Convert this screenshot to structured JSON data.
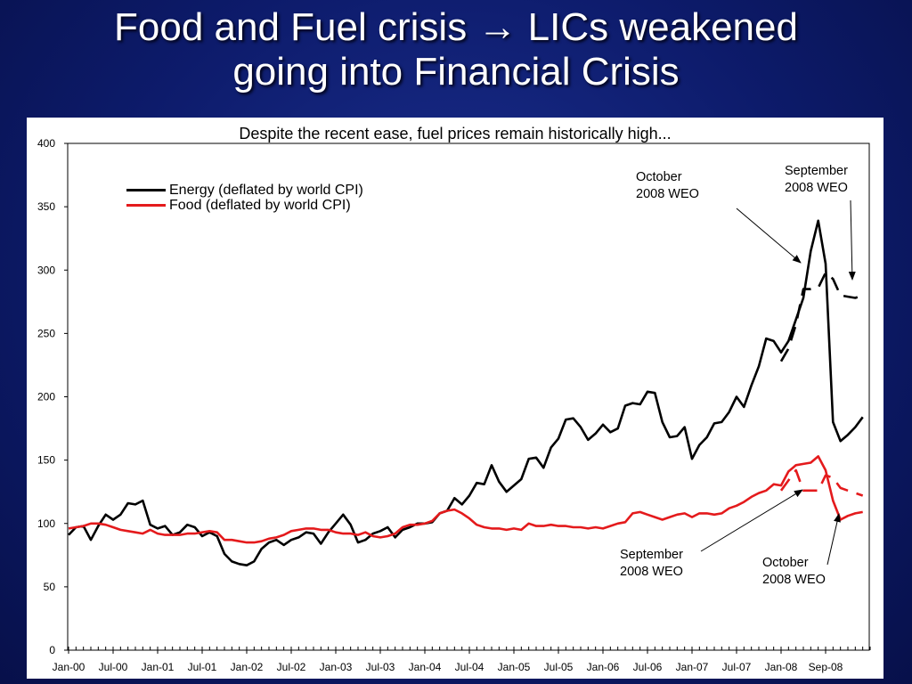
{
  "slide": {
    "title_line1_a": "Food and Fuel crisis",
    "title_arrow": "→",
    "title_line1_b": "LICs weakened",
    "title_line2": "going into Financial Crisis"
  },
  "colors": {
    "energy": "#000000",
    "food": "#e41a1c",
    "background": "#0d1b6b"
  },
  "annotations": {
    "energy_oct_weo": [
      "October",
      "2008 WEO"
    ],
    "energy_sep_weo": [
      "September",
      "2008 WEO"
    ],
    "food_sep_weo": [
      "September",
      "2008 WEO"
    ],
    "food_oct_weo": [
      "October",
      "2008 WEO"
    ]
  },
  "chart_data": {
    "type": "line",
    "title": "Despite the recent ease, fuel prices remain historically high...",
    "xlabel": "",
    "ylabel": "",
    "ylim": [
      0,
      400
    ],
    "yticks": [
      0,
      50,
      100,
      150,
      200,
      250,
      300,
      350,
      400
    ],
    "xticks": [
      "Jan-00",
      "Jul-00",
      "Jan-01",
      "Jul-01",
      "Jan-02",
      "Jul-02",
      "Jan-03",
      "Jul-03",
      "Jan-04",
      "Jul-04",
      "Jan-05",
      "Jul-05",
      "Jan-06",
      "Jul-06",
      "Jan-07",
      "Jul-07",
      "Jan-08",
      "Sep-08"
    ],
    "x_note": "x values are month indices, 0 = Jan-00",
    "legend_placement": "top-left",
    "grid": false,
    "series": [
      {
        "name": "Energy (deflated by world CPI)",
        "color": "#000000",
        "dash": "solid",
        "points": [
          [
            0,
            91
          ],
          [
            1,
            97
          ],
          [
            2,
            98
          ],
          [
            3,
            87
          ],
          [
            4,
            98
          ],
          [
            5,
            107
          ],
          [
            6,
            103
          ],
          [
            7,
            107
          ],
          [
            8,
            116
          ],
          [
            9,
            115
          ],
          [
            10,
            118
          ],
          [
            11,
            99
          ],
          [
            12,
            96
          ],
          [
            13,
            98
          ],
          [
            14,
            91
          ],
          [
            15,
            93
          ],
          [
            16,
            99
          ],
          [
            17,
            97
          ],
          [
            18,
            90
          ],
          [
            19,
            93
          ],
          [
            20,
            90
          ],
          [
            21,
            76
          ],
          [
            22,
            70
          ],
          [
            23,
            68
          ],
          [
            24,
            67
          ],
          [
            25,
            70
          ],
          [
            26,
            80
          ],
          [
            27,
            85
          ],
          [
            28,
            87
          ],
          [
            29,
            83
          ],
          [
            30,
            87
          ],
          [
            31,
            89
          ],
          [
            32,
            93
          ],
          [
            33,
            92
          ],
          [
            34,
            84
          ],
          [
            35,
            93
          ],
          [
            36,
            100
          ],
          [
            37,
            107
          ],
          [
            38,
            99
          ],
          [
            39,
            85
          ],
          [
            40,
            87
          ],
          [
            41,
            92
          ],
          [
            42,
            94
          ],
          [
            43,
            97
          ],
          [
            44,
            89
          ],
          [
            45,
            95
          ],
          [
            46,
            97
          ],
          [
            47,
            100
          ],
          [
            48,
            100
          ],
          [
            49,
            101
          ],
          [
            50,
            108
          ],
          [
            51,
            110
          ],
          [
            52,
            120
          ],
          [
            53,
            115
          ],
          [
            54,
            122
          ],
          [
            55,
            132
          ],
          [
            56,
            131
          ],
          [
            57,
            146
          ],
          [
            58,
            133
          ],
          [
            59,
            125
          ],
          [
            60,
            130
          ],
          [
            61,
            135
          ],
          [
            62,
            151
          ],
          [
            63,
            152
          ],
          [
            64,
            144
          ],
          [
            65,
            160
          ],
          [
            66,
            167
          ],
          [
            67,
            182
          ],
          [
            68,
            183
          ],
          [
            69,
            176
          ],
          [
            70,
            166
          ],
          [
            71,
            171
          ],
          [
            72,
            178
          ],
          [
            73,
            172
          ],
          [
            74,
            175
          ],
          [
            75,
            193
          ],
          [
            76,
            195
          ],
          [
            77,
            194
          ],
          [
            78,
            204
          ],
          [
            79,
            203
          ],
          [
            80,
            180
          ],
          [
            81,
            168
          ],
          [
            82,
            169
          ],
          [
            83,
            176
          ],
          [
            84,
            151
          ],
          [
            85,
            162
          ],
          [
            86,
            168
          ],
          [
            87,
            179
          ],
          [
            88,
            180
          ],
          [
            89,
            188
          ],
          [
            90,
            200
          ],
          [
            91,
            192
          ],
          [
            92,
            209
          ],
          [
            93,
            224
          ],
          [
            94,
            246
          ],
          [
            95,
            244
          ],
          [
            96,
            235
          ],
          [
            97,
            244
          ],
          [
            98,
            261
          ],
          [
            99,
            278
          ],
          [
            100,
            315
          ],
          [
            101,
            339
          ],
          [
            102,
            305
          ],
          [
            103,
            180
          ],
          [
            104,
            165
          ],
          [
            105,
            170
          ],
          [
            106,
            176
          ],
          [
            107,
            184
          ]
        ]
      },
      {
        "name": "Energy September 2008 WEO",
        "color": "#000000",
        "dash": "dashed",
        "points": [
          [
            96,
            228
          ],
          [
            97,
            238
          ],
          [
            98,
            257
          ],
          [
            99,
            285
          ],
          [
            100,
            285
          ],
          [
            101,
            286
          ],
          [
            102,
            298
          ],
          [
            103,
            293
          ],
          [
            104,
            280
          ],
          [
            105,
            279
          ],
          [
            106,
            278
          ],
          [
            107,
            280
          ]
        ]
      },
      {
        "name": "Food (deflated by world CPI)",
        "color": "#e41a1c",
        "dash": "solid",
        "points": [
          [
            0,
            96
          ],
          [
            1,
            97
          ],
          [
            2,
            98
          ],
          [
            3,
            100
          ],
          [
            4,
            100
          ],
          [
            5,
            99
          ],
          [
            6,
            97
          ],
          [
            7,
            95
          ],
          [
            8,
            94
          ],
          [
            9,
            93
          ],
          [
            10,
            92
          ],
          [
            11,
            95
          ],
          [
            12,
            92
          ],
          [
            13,
            91
          ],
          [
            14,
            91
          ],
          [
            15,
            91
          ],
          [
            16,
            92
          ],
          [
            17,
            92
          ],
          [
            18,
            93
          ],
          [
            19,
            94
          ],
          [
            20,
            93
          ],
          [
            21,
            87
          ],
          [
            22,
            87
          ],
          [
            23,
            86
          ],
          [
            24,
            85
          ],
          [
            25,
            85
          ],
          [
            26,
            86
          ],
          [
            27,
            88
          ],
          [
            28,
            89
          ],
          [
            29,
            91
          ],
          [
            30,
            94
          ],
          [
            31,
            95
          ],
          [
            32,
            96
          ],
          [
            33,
            96
          ],
          [
            34,
            95
          ],
          [
            35,
            95
          ],
          [
            36,
            93
          ],
          [
            37,
            92
          ],
          [
            38,
            92
          ],
          [
            39,
            91
          ],
          [
            40,
            93
          ],
          [
            41,
            90
          ],
          [
            42,
            89
          ],
          [
            43,
            90
          ],
          [
            44,
            92
          ],
          [
            45,
            97
          ],
          [
            46,
            99
          ],
          [
            47,
            99
          ],
          [
            48,
            100
          ],
          [
            49,
            102
          ],
          [
            50,
            108
          ],
          [
            51,
            110
          ],
          [
            52,
            111
          ],
          [
            53,
            108
          ],
          [
            54,
            104
          ],
          [
            55,
            99
          ],
          [
            56,
            97
          ],
          [
            57,
            96
          ],
          [
            58,
            96
          ],
          [
            59,
            95
          ],
          [
            60,
            96
          ],
          [
            61,
            95
          ],
          [
            62,
            100
          ],
          [
            63,
            98
          ],
          [
            64,
            98
          ],
          [
            65,
            99
          ],
          [
            66,
            98
          ],
          [
            67,
            98
          ],
          [
            68,
            97
          ],
          [
            69,
            97
          ],
          [
            70,
            96
          ],
          [
            71,
            97
          ],
          [
            72,
            96
          ],
          [
            73,
            98
          ],
          [
            74,
            100
          ],
          [
            75,
            101
          ],
          [
            76,
            108
          ],
          [
            77,
            109
          ],
          [
            78,
            107
          ],
          [
            79,
            105
          ],
          [
            80,
            103
          ],
          [
            81,
            105
          ],
          [
            82,
            107
          ],
          [
            83,
            108
          ],
          [
            84,
            105
          ],
          [
            85,
            108
          ],
          [
            86,
            108
          ],
          [
            87,
            107
          ],
          [
            88,
            108
          ],
          [
            89,
            112
          ],
          [
            90,
            114
          ],
          [
            91,
            117
          ],
          [
            92,
            121
          ],
          [
            93,
            124
          ],
          [
            94,
            126
          ],
          [
            95,
            131
          ],
          [
            96,
            130
          ],
          [
            97,
            141
          ],
          [
            98,
            146
          ],
          [
            99,
            147
          ],
          [
            100,
            148
          ],
          [
            101,
            153
          ],
          [
            102,
            142
          ],
          [
            103,
            118
          ],
          [
            104,
            103
          ],
          [
            105,
            106
          ],
          [
            106,
            108
          ],
          [
            107,
            109
          ]
        ]
      },
      {
        "name": "Food September 2008 WEO",
        "color": "#e41a1c",
        "dash": "dashed",
        "points": [
          [
            96,
            126
          ],
          [
            97,
            134
          ],
          [
            98,
            142
          ],
          [
            99,
            126
          ],
          [
            100,
            126
          ],
          [
            101,
            126
          ],
          [
            102,
            138
          ],
          [
            103,
            136
          ],
          [
            104,
            128
          ],
          [
            105,
            126
          ],
          [
            106,
            124
          ],
          [
            107,
            122
          ]
        ]
      }
    ]
  }
}
